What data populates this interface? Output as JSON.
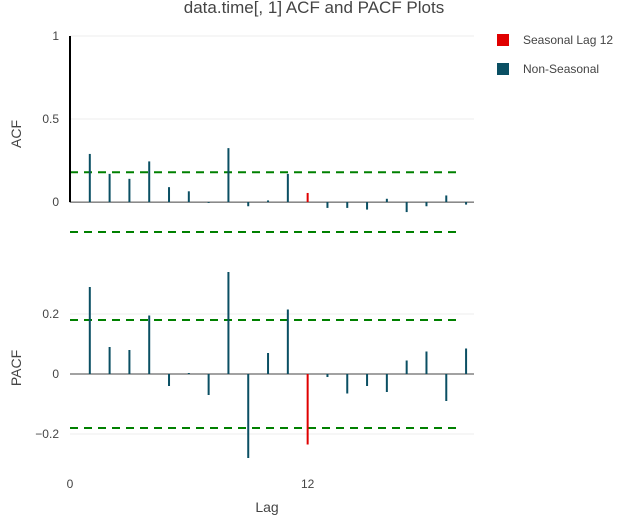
{
  "chart_data": {
    "type": "bar",
    "title": "data.time[, 1] ACF and PACF Plots",
    "xlabel": "Lag",
    "x_ticks": [
      0,
      12
    ],
    "xlim": [
      0,
      20.4
    ],
    "grid": true,
    "legend_position": "top-right",
    "legend": [
      {
        "name": "Seasonal Lag 12",
        "color": "#e00000"
      },
      {
        "name": "Non-Seasonal",
        "color": "#0a4f63"
      }
    ],
    "confidence_color": "#008000",
    "lag0_color": "#000000",
    "panels": [
      {
        "ylabel": "ACF",
        "ylim": [
          -0.18,
          1.0
        ],
        "y_ticks": [
          0,
          0.5,
          1
        ],
        "y_tick_labels": [
          "0",
          "0.5",
          "1"
        ],
        "confidence_band": [
          0.18,
          -0.18
        ],
        "lags": [
          0,
          1,
          2,
          3,
          4,
          5,
          6,
          7,
          8,
          9,
          10,
          11,
          12,
          13,
          14,
          15,
          16,
          17,
          18,
          19,
          20
        ],
        "values": [
          1.0,
          0.29,
          0.17,
          0.14,
          0.245,
          0.09,
          0.065,
          -0.005,
          0.325,
          -0.025,
          0.01,
          0.17,
          0.055,
          -0.035,
          -0.035,
          -0.045,
          0.02,
          -0.06,
          -0.025,
          0.04,
          -0.015
        ]
      },
      {
        "ylabel": "PACF",
        "ylim": [
          -0.32,
          0.36
        ],
        "y_ticks": [
          -0.2,
          0,
          0.2
        ],
        "y_tick_labels": [
          "−0.2",
          "0",
          "0.2"
        ],
        "confidence_band": [
          0.18,
          -0.18
        ],
        "lags": [
          1,
          2,
          3,
          4,
          5,
          6,
          7,
          8,
          9,
          10,
          11,
          12,
          13,
          14,
          15,
          16,
          17,
          18,
          19,
          20
        ],
        "values": [
          0.29,
          0.09,
          0.08,
          0.195,
          -0.04,
          0.0,
          -0.07,
          0.34,
          -0.28,
          0.07,
          0.215,
          -0.235,
          -0.01,
          -0.065,
          -0.04,
          -0.06,
          0.045,
          0.075,
          -0.09,
          0.085
        ]
      }
    ],
    "seasonal_lag": 12
  }
}
